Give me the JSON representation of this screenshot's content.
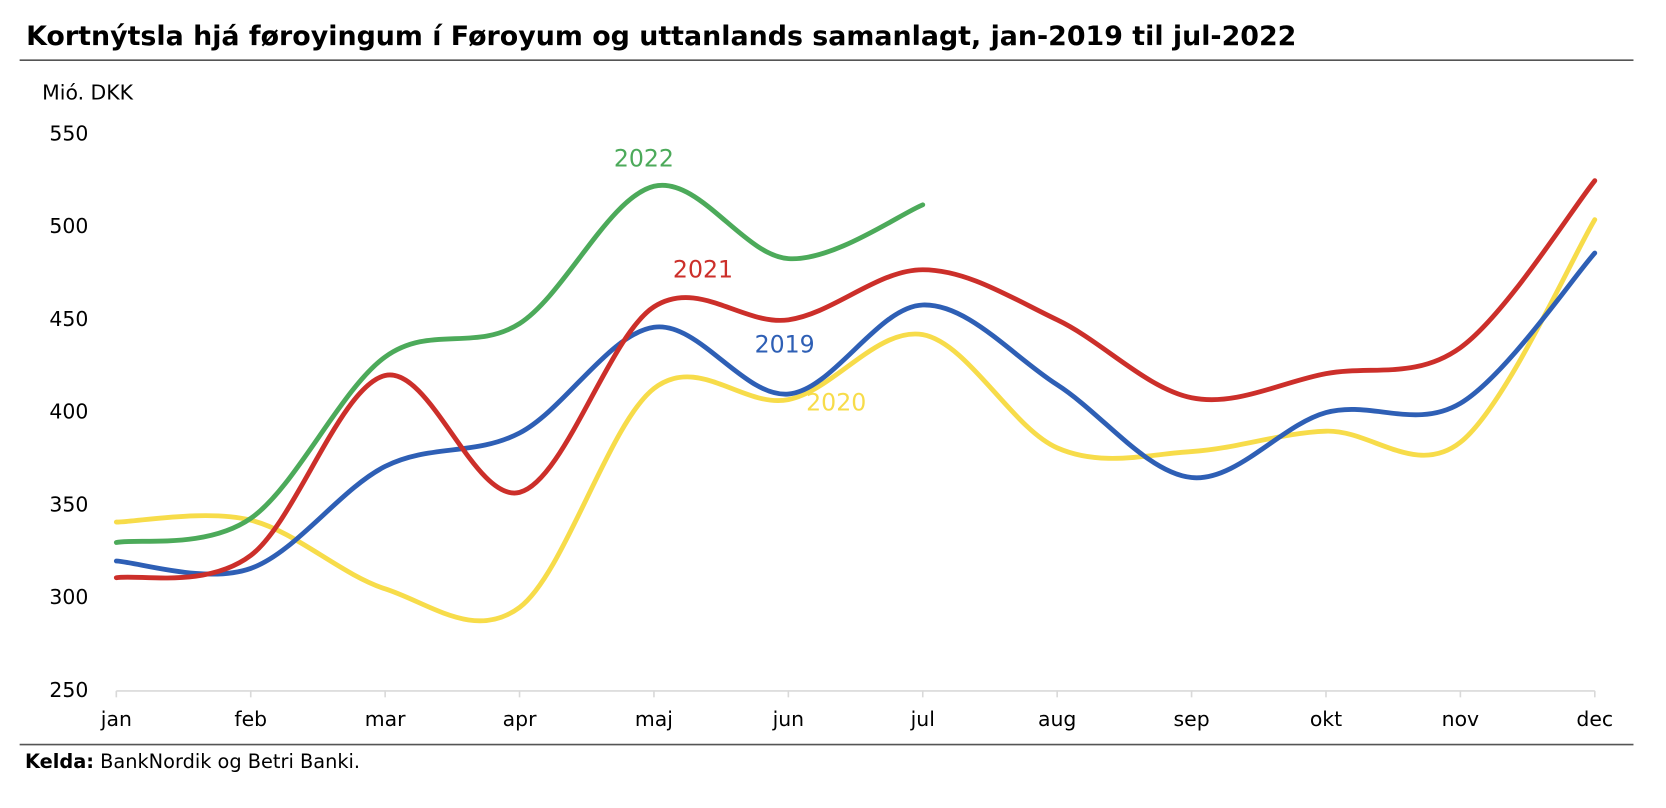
{
  "chart_data": {
    "type": "line",
    "title": "Kortnýtsla hjá føroyingum í Føroyum og uttanlands samanlagt, jan-2019 til jul-2022",
    "y_label": "Mió. DKK",
    "categories": [
      "jan",
      "feb",
      "mar",
      "apr",
      "maj",
      "jun",
      "jul",
      "aug",
      "sep",
      "okt",
      "nov",
      "dec"
    ],
    "series": [
      {
        "name": "2019",
        "color": "#2e5fb5",
        "values": [
          320,
          316,
          371,
          389,
          446,
          410,
          458,
          415,
          365,
          400,
          405,
          486
        ]
      },
      {
        "name": "2020",
        "color": "#f7dc4a",
        "values": [
          341,
          342,
          305,
          295,
          413,
          407,
          442,
          381,
          379,
          390,
          384,
          504
        ]
      },
      {
        "name": "2021",
        "color": "#cc2f2a",
        "values": [
          311,
          323,
          420,
          357,
          457,
          450,
          477,
          450,
          408,
          421,
          435,
          525
        ]
      },
      {
        "name": "2022",
        "color": "#4caa5a",
        "values": [
          330,
          343,
          430,
          448,
          522,
          483,
          512,
          null,
          null,
          null,
          null,
          null
        ]
      }
    ],
    "ylim": [
      250,
      550
    ],
    "yticks": [
      250,
      300,
      350,
      400,
      450,
      500,
      550
    ],
    "grid": false,
    "source_label": "Kelda:",
    "source": "BankNordik og Betri Banki."
  }
}
